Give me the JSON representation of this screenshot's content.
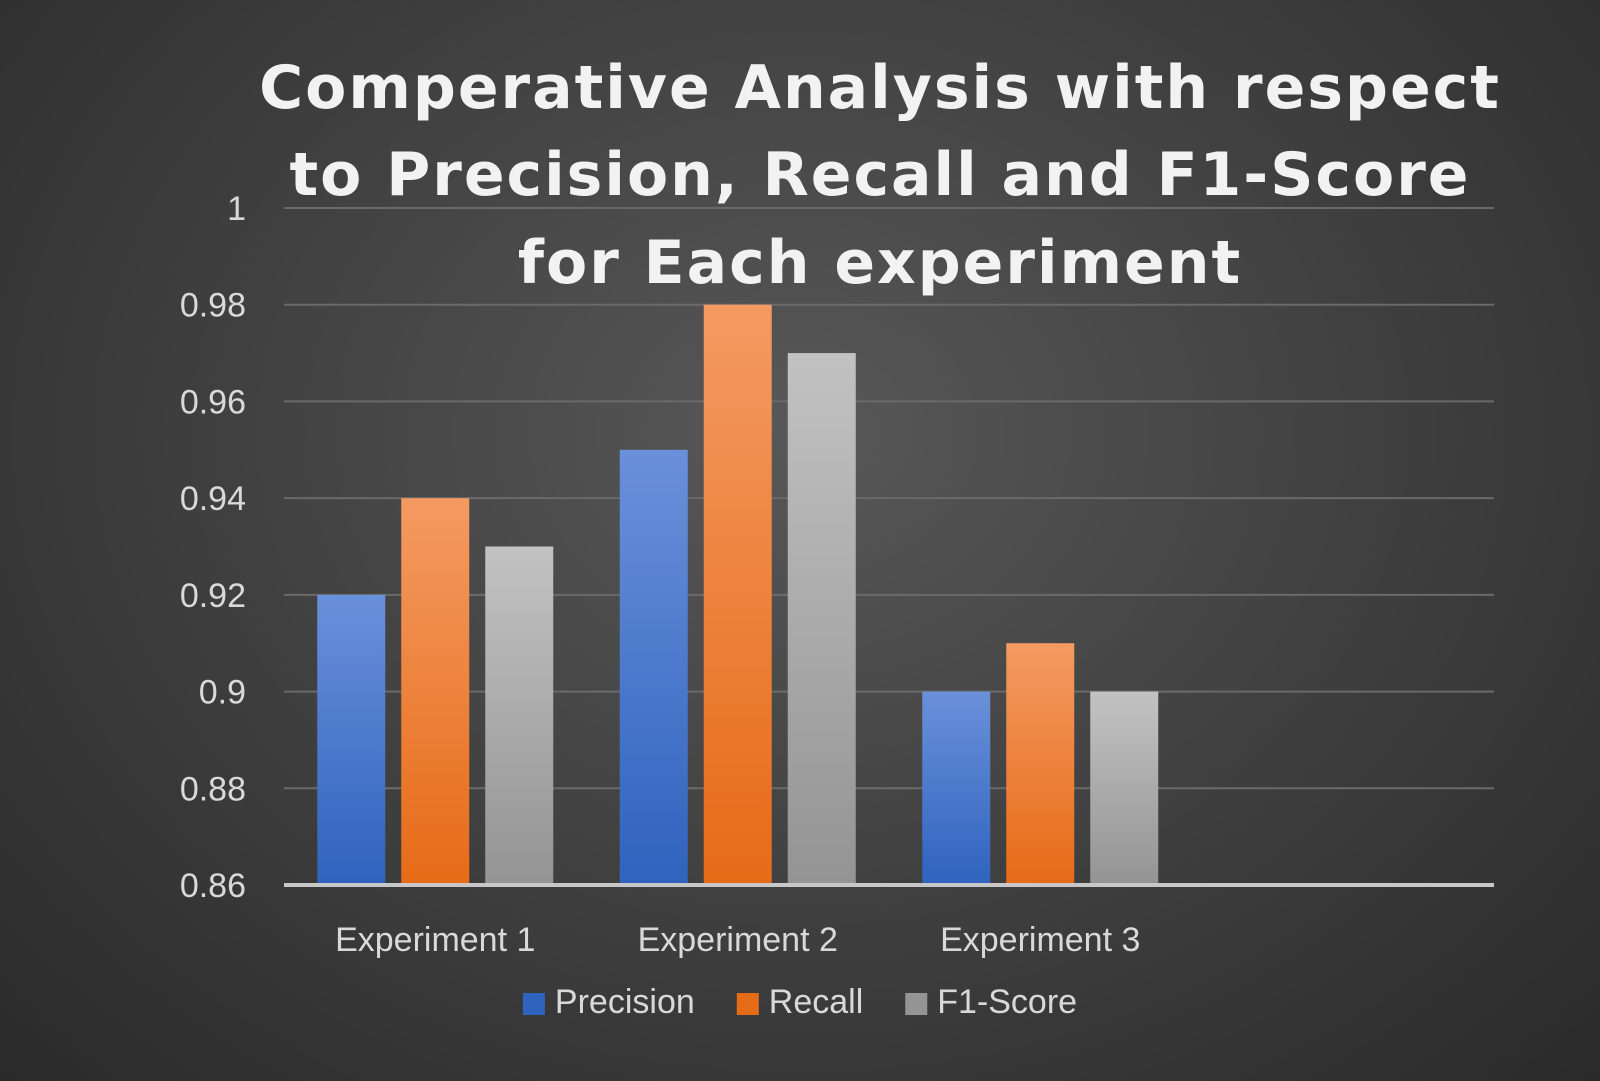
{
  "chart_data": {
    "type": "bar",
    "title_lines": [
      "Comperative Analysis with respect",
      "to Precision, Recall and F1-Score",
      "for Each experiment"
    ],
    "categories": [
      "Experiment 1",
      "Experiment 2",
      "Experiment 3",
      ""
    ],
    "series": [
      {
        "name": "Precision",
        "values": [
          0.92,
          0.95,
          0.9,
          null
        ]
      },
      {
        "name": "Recall",
        "values": [
          0.94,
          0.98,
          0.91,
          null
        ]
      },
      {
        "name": "F1-Score",
        "values": [
          0.93,
          0.97,
          0.9,
          null
        ]
      }
    ],
    "yticks": [
      "0.86",
      "0.88",
      "0.9",
      "0.92",
      "0.94",
      "0.96",
      "0.98",
      "1"
    ],
    "ylim": [
      0.86,
      1.0
    ],
    "ystep": 0.02,
    "grid": true,
    "legend_position": "bottom",
    "colors": {
      "Precision": [
        "#6a90da",
        "#2f63be"
      ],
      "Recall": [
        "#f49a62",
        "#e66b17"
      ],
      "F1-Score": [
        "#c2c2c2",
        "#949494"
      ]
    }
  }
}
